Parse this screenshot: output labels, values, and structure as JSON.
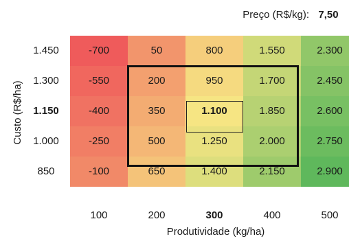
{
  "price": {
    "label": "Preço (R$/kg):",
    "value": "7,50"
  },
  "chart_data": {
    "type": "heatmap",
    "xlabel": "Produtividade (kg/ha)",
    "ylabel": "Custo (R$/ha)",
    "x": [
      "100",
      "200",
      "300",
      "400",
      "500"
    ],
    "y": [
      "1.450",
      "1.300",
      "1.150",
      "1.000",
      "850"
    ],
    "values": [
      [
        -700,
        50,
        800,
        1550,
        2300
      ],
      [
        -550,
        200,
        950,
        1700,
        2450
      ],
      [
        -400,
        350,
        1100,
        1850,
        2600
      ],
      [
        -250,
        500,
        1250,
        2000,
        2750
      ],
      [
        -100,
        650,
        1400,
        2150,
        2900
      ]
    ],
    "cell_labels": [
      [
        "-700",
        "50",
        "800",
        "1.550",
        "2.300"
      ],
      [
        "-550",
        "200",
        "950",
        "1.700",
        "2.450"
      ],
      [
        "-400",
        "350",
        "1.100",
        "1.850",
        "2.600"
      ],
      [
        "-250",
        "500",
        "1.250",
        "2.000",
        "2.750"
      ],
      [
        "-100",
        "650",
        "1.400",
        "2.150",
        "2.900"
      ]
    ],
    "highlight": {
      "row": "1.150",
      "col": "300"
    },
    "color_scale": {
      "low": "#ef5b5b",
      "mid": "#f6e583",
      "high": "#5fb85c"
    }
  }
}
